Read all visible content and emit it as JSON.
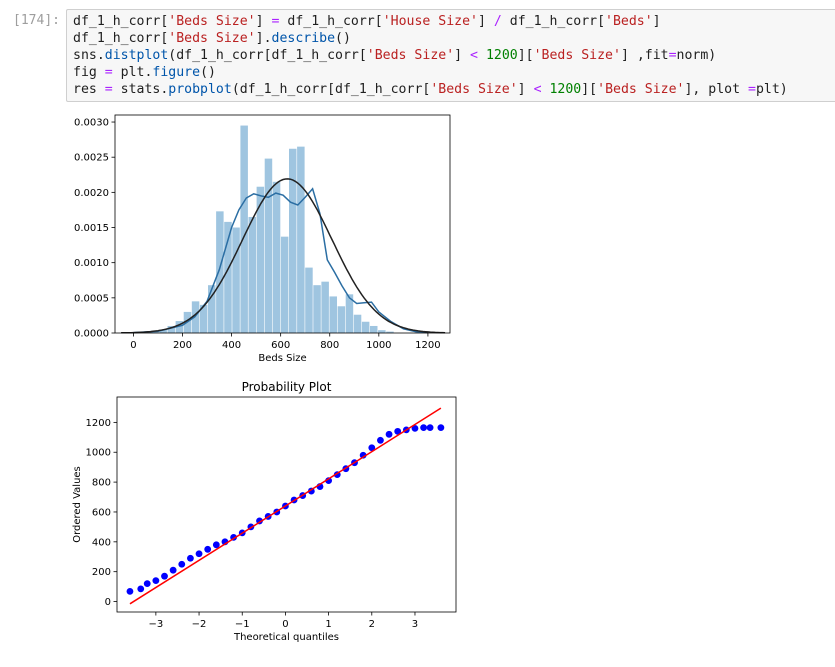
{
  "cell": {
    "prompt": "[174]:",
    "lines": [
      [
        {
          "t": "df_1_h_corr[",
          "c": ""
        },
        {
          "t": "'Beds Size'",
          "c": "str"
        },
        {
          "t": "] ",
          "c": ""
        },
        {
          "t": "=",
          "c": "op"
        },
        {
          "t": " df_1_h_corr[",
          "c": ""
        },
        {
          "t": "'House Size'",
          "c": "str"
        },
        {
          "t": "] ",
          "c": ""
        },
        {
          "t": "/",
          "c": "op"
        },
        {
          "t": " df_1_h_corr[",
          "c": ""
        },
        {
          "t": "'Beds'",
          "c": "str"
        },
        {
          "t": "]",
          "c": ""
        }
      ],
      [
        {
          "t": "df_1_h_corr[",
          "c": ""
        },
        {
          "t": "'Beds Size'",
          "c": "str"
        },
        {
          "t": "].",
          "c": ""
        },
        {
          "t": "describe",
          "c": "call"
        },
        {
          "t": "()",
          "c": ""
        }
      ],
      [
        {
          "t": "sns.",
          "c": ""
        },
        {
          "t": "distplot",
          "c": "call"
        },
        {
          "t": "(df_1_h_corr[df_1_h_corr[",
          "c": ""
        },
        {
          "t": "'Beds Size'",
          "c": "str"
        },
        {
          "t": "] ",
          "c": ""
        },
        {
          "t": "<",
          "c": "op"
        },
        {
          "t": " ",
          "c": ""
        },
        {
          "t": "1200",
          "c": "num"
        },
        {
          "t": "][",
          "c": ""
        },
        {
          "t": "'Beds Size'",
          "c": "str"
        },
        {
          "t": "] ,fit",
          "c": ""
        },
        {
          "t": "=",
          "c": "op"
        },
        {
          "t": "norm)",
          "c": ""
        }
      ],
      [
        {
          "t": "fig ",
          "c": ""
        },
        {
          "t": "=",
          "c": "op"
        },
        {
          "t": " plt.",
          "c": ""
        },
        {
          "t": "figure",
          "c": "call"
        },
        {
          "t": "()",
          "c": ""
        }
      ],
      [
        {
          "t": "res ",
          "c": ""
        },
        {
          "t": "=",
          "c": "op"
        },
        {
          "t": " stats.",
          "c": ""
        },
        {
          "t": "probplot",
          "c": "call"
        },
        {
          "t": "(df_1_h_corr[df_1_h_corr[",
          "c": ""
        },
        {
          "t": "'Beds Size'",
          "c": "str"
        },
        {
          "t": "] ",
          "c": ""
        },
        {
          "t": "<",
          "c": "op"
        },
        {
          "t": " ",
          "c": ""
        },
        {
          "t": "1200",
          "c": "num"
        },
        {
          "t": "][",
          "c": ""
        },
        {
          "t": "'Beds Size'",
          "c": "str"
        },
        {
          "t": "], plot ",
          "c": ""
        },
        {
          "t": "=",
          "c": "op"
        },
        {
          "t": "plt)",
          "c": ""
        }
      ]
    ]
  },
  "chart_data": [
    {
      "type": "bar",
      "title": "",
      "xlabel": "Beds Size",
      "ylabel": "",
      "xlim": [
        -75,
        1290
      ],
      "ylim": [
        0,
        0.0031
      ],
      "xticks": [
        "0",
        "200",
        "400",
        "600",
        "800",
        "1000",
        "1200"
      ],
      "yticks": [
        "0.0000",
        "0.0005",
        "0.0010",
        "0.0015",
        "0.0020",
        "0.0025",
        "0.0030"
      ],
      "bin_start": 40,
      "bin_width": 33,
      "values": [
        2e-05,
        3e-05,
        5e-05,
        0.0001,
        0.00017,
        0.0003,
        0.00045,
        0.0004,
        0.00068,
        0.00173,
        0.00158,
        0.0015,
        0.00295,
        0.00165,
        0.00208,
        0.00248,
        0.00215,
        0.00137,
        0.00262,
        0.00265,
        0.00093,
        0.00068,
        0.00073,
        0.00052,
        0.00038,
        0.00055,
        0.00026,
        0.00016,
        0.0001,
        4e-05,
        2e-05
      ],
      "series": [
        {
          "name": "",
          "kind": "kde",
          "color": "#2b6ea3",
          "x": [
            0,
            100,
            200,
            250,
            300,
            350,
            400,
            430,
            460,
            490,
            520,
            550,
            580,
            610,
            640,
            670,
            700,
            730,
            760,
            790,
            820,
            850,
            880,
            910,
            940,
            970,
            1000,
            1050,
            1100,
            1150,
            1200
          ],
          "y": [
            5e-06,
            2.5e-05,
            0.00011,
            0.00023,
            0.00045,
            0.0009,
            0.0015,
            0.00175,
            0.00192,
            0.00198,
            0.00195,
            0.00193,
            0.00199,
            0.00196,
            0.00186,
            0.00182,
            0.00193,
            0.00205,
            0.0017,
            0.00104,
            0.00086,
            0.00067,
            0.0005,
            0.00042,
            0.00043,
            0.00044,
            0.0003,
            0.00016,
            6e-05,
            2e-05,
            5e-06
          ]
        },
        {
          "name": "",
          "kind": "normal-fit",
          "color": "#222222",
          "mean": 627,
          "std": 182
        }
      ]
    },
    {
      "type": "scatter",
      "title": "Probability Plot",
      "xlabel": "Theoretical quantiles",
      "ylabel": "Ordered Values",
      "xlim": [
        -3.9,
        3.95
      ],
      "ylim": [
        -70,
        1370
      ],
      "xticks": [
        "−3",
        "−2",
        "−1",
        "0",
        "1",
        "2",
        "3"
      ],
      "yticks": [
        "0",
        "200",
        "400",
        "600",
        "800",
        "1000",
        "1200"
      ],
      "points_x": [
        -3.6,
        -3.35,
        -3.2,
        -3.0,
        -2.8,
        -2.6,
        -2.4,
        -2.2,
        -2.0,
        -1.8,
        -1.6,
        -1.4,
        -1.2,
        -1.0,
        -0.8,
        -0.6,
        -0.4,
        -0.2,
        0.0,
        0.2,
        0.4,
        0.6,
        0.8,
        1.0,
        1.2,
        1.4,
        1.6,
        1.8,
        2.0,
        2.2,
        2.4,
        2.6,
        2.8,
        3.0,
        3.2,
        3.35,
        3.6
      ],
      "points_y": [
        68,
        85,
        120,
        140,
        170,
        210,
        250,
        290,
        320,
        350,
        380,
        400,
        430,
        460,
        500,
        540,
        570,
        600,
        640,
        680,
        710,
        740,
        770,
        810,
        850,
        890,
        930,
        980,
        1030,
        1080,
        1120,
        1140,
        1150,
        1160,
        1165,
        1165,
        1165
      ],
      "points_color": "#0000ff",
      "fit_line": {
        "slope": 182,
        "intercept": 640,
        "x_range": [
          -3.6,
          3.6
        ],
        "color": "#ff0000"
      }
    }
  ]
}
